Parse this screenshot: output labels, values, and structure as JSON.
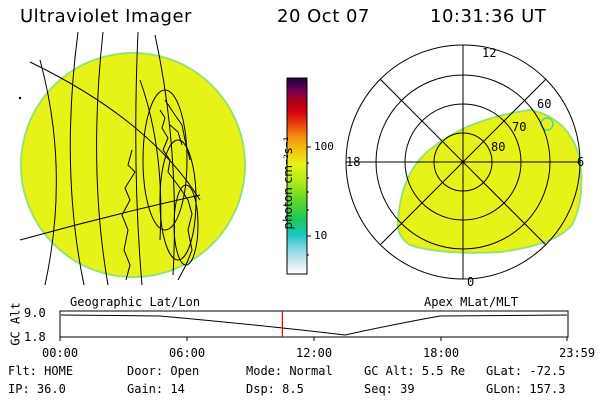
{
  "header": {
    "instrument": "Ultraviolet Imager",
    "date": "20 Oct 07",
    "time": "10:31:36 UT"
  },
  "left_panel": {
    "label": "Geographic Lat/Lon"
  },
  "right_panel": {
    "label": "Apex MLat/MLT",
    "mlt_labels": [
      "12",
      "18",
      "6",
      "0"
    ],
    "lat_labels": [
      "60",
      "70",
      "80"
    ]
  },
  "colorbar": {
    "unit_label": "photon cm⁻²s⁻¹",
    "ticks": [
      "100",
      "10"
    ]
  },
  "timeline": {
    "y_label": "GC Alt",
    "y_ticks": [
      "9.0",
      "1.8"
    ],
    "x_ticks": [
      "00:00",
      "06:00",
      "12:00",
      "18:00",
      "23:59"
    ],
    "current_time_fraction": 0.4386
  },
  "info": {
    "row1": [
      {
        "label": "Flt:",
        "value": "HOME"
      },
      {
        "label": "Door:",
        "value": "Open"
      },
      {
        "label": "Mode:",
        "value": "Normal"
      },
      {
        "label": "GC Alt:",
        "value": "5.5 Re"
      },
      {
        "label": "GLat:",
        "value": "-72.5"
      }
    ],
    "row2": [
      {
        "label": "IP:",
        "value": "36.0"
      },
      {
        "label": "Gain:",
        "value": "14"
      },
      {
        "label": "Dsp:",
        "value": "8.5"
      },
      {
        "label": "Seq:",
        "value": "39"
      },
      {
        "label": "GLon:",
        "value": "157.3"
      }
    ]
  },
  "colors": {
    "emission": "#e7f318",
    "emission_edge": "#9be070",
    "timeline_marker": "#e00000"
  }
}
